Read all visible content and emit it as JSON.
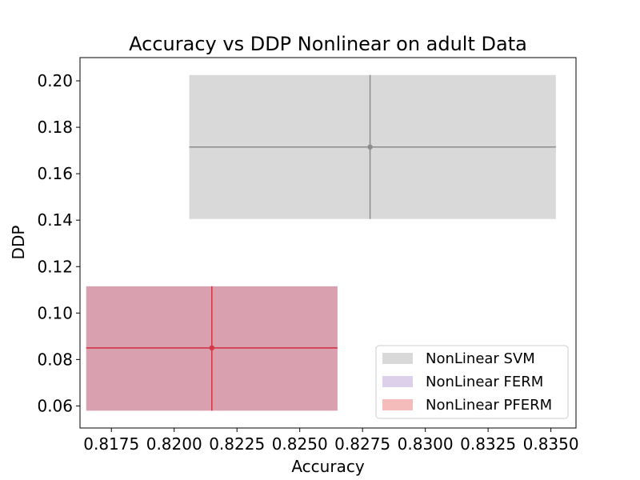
{
  "chart_data": {
    "type": "scatter",
    "title": "Accuracy vs DDP Nonlinear on adult Data",
    "xlabel": "Accuracy",
    "ylabel": "DDP",
    "xlim": [
      0.81625,
      0.836
    ],
    "ylim": [
      0.0505,
      0.21
    ],
    "x_ticks": [
      0.8175,
      0.82,
      0.8225,
      0.825,
      0.8275,
      0.83,
      0.8325,
      0.835
    ],
    "x_tick_labels": [
      "0.8175",
      "0.8200",
      "0.8225",
      "0.8250",
      "0.8275",
      "0.8300",
      "0.8325",
      "0.8350"
    ],
    "y_ticks": [
      0.06,
      0.08,
      0.1,
      0.12,
      0.14,
      0.16,
      0.18,
      0.2
    ],
    "y_tick_labels": [
      "0.06",
      "0.08",
      "0.10",
      "0.12",
      "0.14",
      "0.16",
      "0.18",
      "0.20"
    ],
    "grid": false,
    "legend_position": "lower-right",
    "series": [
      {
        "name": "NonLinear SVM",
        "x": 0.8278,
        "y": 0.1715,
        "x_range": [
          0.8206,
          0.8352
        ],
        "y_range": [
          0.1405,
          0.2025
        ],
        "fill_color": "#d9d9d9",
        "line_color": "#8c8c8c",
        "legend_color": "#d9d9d9"
      },
      {
        "name": "NonLinear FERM",
        "x": 0.8215,
        "y": 0.085,
        "x_range": [
          0.8165,
          0.8265
        ],
        "y_range": [
          0.058,
          0.1115
        ],
        "fill_color": "#d9a0b0",
        "line_color": "#d23a4a",
        "legend_color": "#dcd0ea"
      },
      {
        "name": "NonLinear PFERM",
        "x": 0.8215,
        "y": 0.085,
        "x_range": [
          0.8165,
          0.8265
        ],
        "y_range": [
          0.058,
          0.1115
        ],
        "fill_color": "#d9a0b0",
        "line_color": "#d23a4a",
        "legend_color": "#f5bcbc"
      }
    ]
  }
}
